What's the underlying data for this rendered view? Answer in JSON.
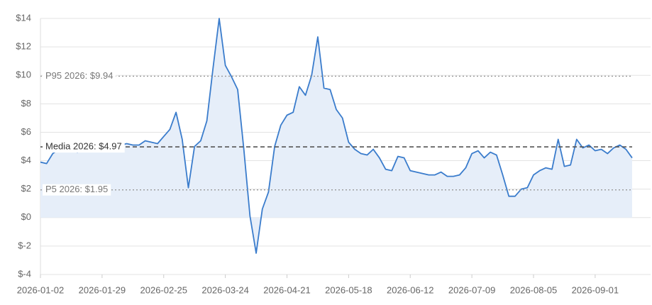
{
  "chart_data": {
    "type": "area",
    "categories": [
      "2026-01-02",
      null,
      null,
      null,
      null,
      null,
      null,
      null,
      null,
      null,
      "2026-01-29",
      null,
      null,
      null,
      null,
      null,
      null,
      null,
      null,
      null,
      "2026-02-25",
      null,
      null,
      null,
      null,
      null,
      null,
      null,
      null,
      null,
      "2026-03-24",
      null,
      null,
      null,
      null,
      null,
      null,
      null,
      null,
      null,
      "2026-04-21",
      null,
      null,
      null,
      null,
      null,
      null,
      null,
      null,
      null,
      "2026-05-18",
      null,
      null,
      null,
      null,
      null,
      null,
      null,
      null,
      null,
      "2026-06-12",
      null,
      null,
      null,
      null,
      null,
      null,
      null,
      null,
      null,
      "2026-07-09",
      null,
      null,
      null,
      null,
      null,
      null,
      null,
      null,
      null,
      "2026-08-05",
      null,
      null,
      null,
      null,
      null,
      null,
      null,
      null,
      null,
      "2026-09-01",
      null,
      null,
      null,
      null,
      null,
      null
    ],
    "series": [
      {
        "color": "#3a7ccc",
        "fill": "#e6eef9",
        "values": [
          3.9,
          3.8,
          4.5,
          4.8,
          5.0,
          4.8,
          4.6,
          4.9,
          5.0,
          5.0,
          5.0,
          5.1,
          5.1,
          5.1,
          5.2,
          5.1,
          5.1,
          5.4,
          5.3,
          5.2,
          5.7,
          6.2,
          7.4,
          5.5,
          2.1,
          5.0,
          5.4,
          6.8,
          10.5,
          14.0,
          10.7,
          9.9,
          9.0,
          4.8,
          0.1,
          -2.5,
          0.6,
          1.8,
          5.0,
          6.5,
          7.2,
          7.4,
          9.2,
          8.6,
          10.0,
          12.7,
          9.1,
          9.0,
          7.6,
          7.0,
          5.3,
          4.8,
          4.5,
          4.4,
          4.8,
          4.2,
          3.4,
          3.3,
          4.3,
          4.2,
          3.3,
          3.2,
          3.1,
          3.0,
          3.0,
          3.2,
          2.9,
          2.9,
          3.0,
          3.5,
          4.5,
          4.7,
          4.2,
          4.6,
          4.4,
          3.0,
          1.5,
          1.5,
          2.0,
          2.1,
          3.0,
          3.3,
          3.5,
          3.4,
          5.5,
          3.6,
          3.7,
          5.5,
          4.9,
          5.1,
          4.7,
          4.8,
          4.5,
          4.9,
          5.1,
          4.8,
          4.2
        ]
      }
    ],
    "ylim": [
      -4,
      14
    ],
    "yticks": [
      {
        "value": -4,
        "label": "$-4"
      },
      {
        "value": -2,
        "label": "$-2"
      },
      {
        "value": 0,
        "label": "$0"
      },
      {
        "value": 2,
        "label": "$2"
      },
      {
        "value": 4,
        "label": "$4"
      },
      {
        "value": 6,
        "label": "$6"
      },
      {
        "value": 8,
        "label": "$8"
      },
      {
        "value": 10,
        "label": "$10"
      },
      {
        "value": 12,
        "label": "$12"
      },
      {
        "value": 14,
        "label": "$14"
      }
    ],
    "grid": true,
    "reference_lines": [
      {
        "value": 9.94,
        "label": "P95 2026: $9.94",
        "style": "dotted",
        "color": "#999999"
      },
      {
        "value": 4.97,
        "label": "Media 2026: $4.97",
        "style": "dashed",
        "color": "#555555"
      },
      {
        "value": 1.95,
        "label": "P5 2026: $1.95",
        "style": "dotted",
        "color": "#999999"
      }
    ]
  }
}
